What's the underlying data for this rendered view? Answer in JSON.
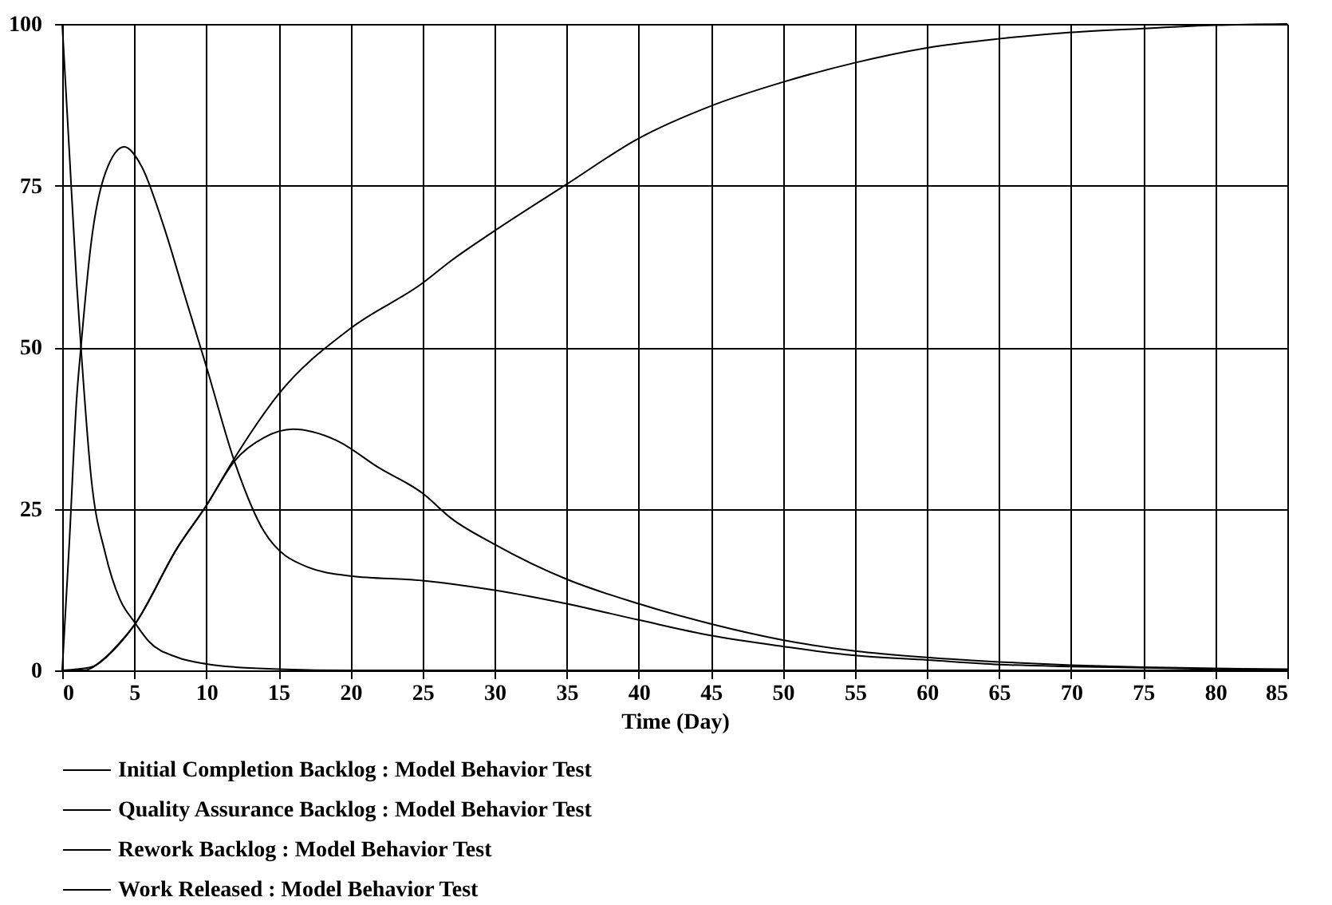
{
  "chart_data": {
    "type": "line",
    "xlabel": "Time (Day)",
    "xlim": [
      0,
      85
    ],
    "xticks": [
      0,
      5,
      10,
      15,
      20,
      25,
      30,
      35,
      40,
      45,
      50,
      55,
      60,
      65,
      70,
      75,
      80,
      85
    ],
    "ylim": [
      0,
      100
    ],
    "yticks": [
      0,
      25,
      50,
      75,
      100
    ],
    "grid": true,
    "legend": "bottom",
    "line_style": "solid",
    "marker": "none",
    "series": [
      {
        "name": "Initial Completion Backlog : Model Behavior Test",
        "color": "#000000",
        "x": [
          0,
          0.5,
          1,
          1.3,
          2,
          3,
          4,
          5,
          6,
          8,
          10,
          12,
          15,
          20,
          30,
          50,
          85
        ],
        "values": [
          100,
          80,
          60,
          50,
          30,
          18,
          11,
          7.5,
          4.5,
          2,
          1,
          0.5,
          0.2,
          0,
          0,
          0,
          0
        ]
      },
      {
        "name": "Quality Assurance Backlog : Model Behavior Test",
        "color": "#000000",
        "x": [
          0,
          0.5,
          1,
          1.3,
          2,
          3,
          4.3,
          5.5,
          7,
          8.5,
          10,
          12,
          14,
          17,
          20,
          25,
          30,
          35,
          40,
          45,
          50,
          55,
          60,
          65,
          70,
          75,
          80,
          85
        ],
        "values": [
          0,
          20,
          42,
          50,
          66,
          77,
          81,
          78,
          69,
          58,
          47,
          32,
          21.5,
          16,
          14.6,
          13.9,
          12.4,
          10.3,
          7.8,
          5.4,
          3.7,
          2.3,
          1.6,
          0.9,
          0.6,
          0.4,
          0.2,
          0.1
        ]
      },
      {
        "name": "Rework Backlog : Model Behavior Test",
        "color": "#000000",
        "x": [
          0,
          1.5,
          3,
          5,
          8,
          10,
          12,
          14,
          16,
          19,
          22,
          25,
          27,
          30,
          35,
          40,
          45,
          50,
          55,
          60,
          65,
          70,
          75,
          80,
          85
        ],
        "values": [
          0,
          0,
          2,
          7,
          19,
          25.5,
          32.5,
          36,
          37.3,
          35.6,
          31.3,
          27.4,
          23.5,
          19.5,
          14.1,
          10.3,
          7.2,
          4.7,
          3,
          2,
          1.3,
          0.8,
          0.5,
          0.3,
          0.2
        ]
      },
      {
        "name": "Work Released : Model Behavior Test",
        "color": "#000000",
        "x": [
          0,
          2,
          4,
          5,
          8,
          10,
          12,
          15,
          20,
          25,
          27,
          30,
          35,
          40,
          45,
          50,
          55,
          60,
          65,
          70,
          75,
          80,
          85
        ],
        "values": [
          0,
          0.5,
          4.3,
          7,
          19,
          25.5,
          33,
          42.7,
          52.9,
          59.9,
          63.4,
          68,
          75.2,
          82.3,
          87.3,
          91,
          94,
          96.3,
          97.7,
          98.7,
          99.3,
          99.8,
          100
        ]
      }
    ]
  }
}
